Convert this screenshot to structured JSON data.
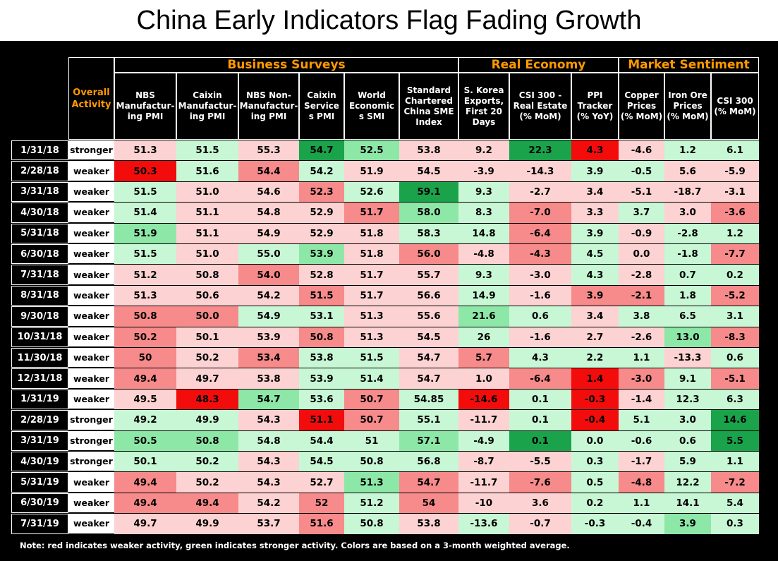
{
  "title": "China Early Indicators Flag Fading Growth",
  "note": "Note: red indicates weaker activity, green indicates stronger activity. Colors are based on a 3-month weighted average.",
  "groups": [
    {
      "label": "Business Surveys",
      "span": 6
    },
    {
      "label": "Real Economy",
      "span": 3
    },
    {
      "label": "Market Sentiment",
      "span": 3
    }
  ],
  "overall_header": "Overall Activity",
  "columns": [
    "NBS Manufactur-ing PMI",
    "Caixin Manufactur-ing PMI",
    "NBS Non-Manufactur-ing PMI",
    "Caixin Service s PMI",
    "World Economic s SMI",
    "Standard Chartered China SME Index",
    "S. Korea Exports, First 20 Days",
    "CSI 300 - Real Estate (% MoM)",
    "PPI Tracker (% YoY)",
    "Copper Prices (% MoM)",
    "Iron Ore Prices (% MoM)",
    "CSI 300 (% MoM)"
  ],
  "palette": {
    "S": "#1aa34a",
    "G": "#8de8a8",
    "g": "#c8f7d5",
    "p": "#fdd2d2",
    "r": "#f78a8a",
    "R": "#f20c0c"
  },
  "chart_data": {
    "type": "table",
    "rows": [
      {
        "date": "1/31/18",
        "activity": "stronger",
        "values": [
          "51.3",
          "51.5",
          "55.3",
          "54.7",
          "52.5",
          "53.8",
          "9.2",
          "22.3",
          "4.3",
          "-4.6",
          "1.2",
          "6.1"
        ],
        "colors": "pgpSGppSRpgg"
      },
      {
        "date": "2/28/18",
        "activity": "weaker",
        "values": [
          "50.3",
          "51.6",
          "54.4",
          "54.2",
          "51.9",
          "54.5",
          "-3.9",
          "-14.3",
          "3.9",
          "-0.5",
          "5.6",
          "-5.9"
        ],
        "colors": "Rgrgppppggpp"
      },
      {
        "date": "3/31/18",
        "activity": "weaker",
        "values": [
          "51.5",
          "51.0",
          "54.6",
          "52.3",
          "52.6",
          "59.1",
          "9.3",
          "-2.7",
          "3.4",
          "-5.1",
          "-18.7",
          "-3.1"
        ],
        "colors": "gpprgSgppppp"
      },
      {
        "date": "4/30/18",
        "activity": "weaker",
        "values": [
          "51.4",
          "51.1",
          "54.8",
          "52.9",
          "51.7",
          "58.0",
          "8.3",
          "-7.0",
          "3.3",
          "3.7",
          "3.0",
          "-3.6"
        ],
        "colors": "gpppr Ggrpgpr"
      },
      {
        "date": "5/31/18",
        "activity": "weaker",
        "values": [
          "51.9",
          "51.1",
          "54.9",
          "52.9",
          "51.8",
          "58.3",
          "14.8",
          "-6.4",
          "3.9",
          "-0.9",
          "-2.8",
          "1.2"
        ],
        "colors": "Gpppp ggrgpgg"
      },
      {
        "date": "6/30/18",
        "activity": "weaker",
        "values": [
          "51.5",
          "51.0",
          "55.0",
          "53.9",
          "51.8",
          "56.0",
          "-4.8",
          "-4.3",
          "4.5",
          "0.0",
          "-1.8",
          "-7.7"
        ],
        "colors": "gpgGpr prgpgr"
      },
      {
        "date": "7/31/18",
        "activity": "weaker",
        "values": [
          "51.2",
          "50.8",
          "54.0",
          "52.8",
          "51.7",
          "55.7",
          "9.3",
          "-3.0",
          "4.3",
          "-2.8",
          "0.7",
          "0.2"
        ],
        "colors": "pprppp gpgpgg"
      },
      {
        "date": "8/31/18",
        "activity": "weaker",
        "values": [
          "51.3",
          "50.6",
          "54.2",
          "51.5",
          "51.7",
          "56.6",
          "14.9",
          "-1.6",
          "3.9",
          "-2.1",
          "1.8",
          "-5.2"
        ],
        "colors": "pppr pp gprrgr"
      },
      {
        "date": "9/30/18",
        "activity": "weaker",
        "values": [
          "50.8",
          "50.0",
          "54.9",
          "53.1",
          "51.3",
          "55.6",
          "21.6",
          "0.6",
          "3.4",
          "3.8",
          "6.5",
          "3.1"
        ],
        "colors": "rrgg pp Ggpggg"
      },
      {
        "date": "10/31/18",
        "activity": "weaker",
        "values": [
          "50.2",
          "50.1",
          "53.9",
          "50.8",
          "51.3",
          "54.5",
          "26",
          "-1.6",
          "2.7",
          "-2.6",
          "13.0",
          "-8.3"
        ],
        "colors": "rppr pp gpppGr"
      },
      {
        "date": "11/30/18",
        "activity": "weaker",
        "values": [
          "50",
          "50.2",
          "53.4",
          "53.8",
          "51.5",
          "54.7",
          "5.7",
          "4.3",
          "2.2",
          "1.1",
          "-13.3",
          "0.6"
        ],
        "colors": "rprg gp rggg pg"
      },
      {
        "date": "12/31/18",
        "activity": "weaker",
        "values": [
          "49.4",
          "49.7",
          "53.8",
          "53.9",
          "51.4",
          "54.7",
          "1.0",
          "-6.4",
          "1.4",
          "-3.0",
          "9.1",
          "-5.1"
        ],
        "colors": "rppg gp prRrgr"
      },
      {
        "date": "1/31/19",
        "activity": "weaker",
        "values": [
          "49.5",
          "48.3",
          "54.7",
          "53.6",
          "50.7",
          "54.85",
          "-14.6",
          "0.1",
          "-0.3",
          "-1.4",
          "12.3",
          "6.3"
        ],
        "colors": "pRGgr g RgRp gg"
      },
      {
        "date": "2/28/19",
        "activity": "stronger",
        "values": [
          "49.2",
          "49.9",
          "54.3",
          "51.1",
          "50.7",
          "55.1",
          "-11.7",
          "0.1",
          "-0.4",
          "5.1",
          "3.0",
          "14.6"
        ],
        "colors": "ggpRrg pgRggS"
      },
      {
        "date": "3/31/19",
        "activity": "stronger",
        "values": [
          "50.5",
          "50.8",
          "54.8",
          "54.4",
          "51",
          "57.1",
          "-4.9",
          "0.1",
          "0.0",
          "-0.6",
          "0.6",
          "5.5"
        ],
        "colors": "GGggg G gSggg S"
      },
      {
        "date": "4/30/19",
        "activity": "stronger",
        "values": [
          "50.1",
          "50.2",
          "54.3",
          "54.5",
          "50.8",
          "56.8",
          "-8.7",
          "-5.5",
          "0.3",
          "-1.7",
          "5.9",
          "1.1"
        ],
        "colors": "ggpggg ppgpgg"
      },
      {
        "date": "5/31/19",
        "activity": "weaker",
        "values": [
          "49.4",
          "50.2",
          "54.3",
          "52.7",
          "51.3",
          "54.7",
          "-11.7",
          "-7.6",
          "0.5",
          "-4.8",
          "12.2",
          "-7.2"
        ],
        "colors": "rppp Grp rgrgr"
      },
      {
        "date": "6/30/19",
        "activity": "weaker",
        "values": [
          "49.4",
          "49.4",
          "54.2",
          "52",
          "51.2",
          "54",
          "-10",
          "3.6",
          "0.2",
          "1.1",
          "14.1",
          "5.4"
        ],
        "colors": "rrpr grp pggggg"
      },
      {
        "date": "7/31/19",
        "activity": "weaker",
        "values": [
          "49.7",
          "49.9",
          "53.7",
          "51.6",
          "50.8",
          "53.8",
          "-13.6",
          "-0.7",
          "-0.3",
          "-0.4",
          "3.9",
          "0.3"
        ],
        "colors": "ppprgp gpggGg"
      }
    ]
  }
}
